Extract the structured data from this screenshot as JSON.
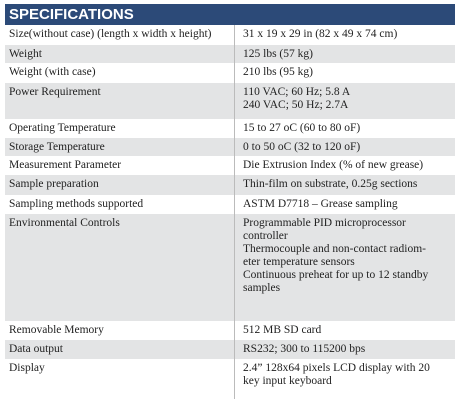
{
  "header": {
    "title": "SPECIFICATIONS"
  },
  "table": {
    "rows": [
      [
        "Size(without case) (length x width x height)",
        [
          "31 x 19 x 29 in (82 x 49 x 74 cm)"
        ]
      ],
      [
        "Weight",
        [
          "125 lbs (57 kg)"
        ]
      ],
      [
        "Weight (with case)",
        [
          "210 lbs (95 kg)"
        ]
      ],
      [
        "Power Requirement",
        [
          "110 VAC; 60 Hz; 5.8 A",
          "240 VAC; 50 Hz; 2.7A"
        ]
      ],
      [
        "Operating Temperature",
        [
          "15 to 27 oC (60 to 80 oF)"
        ]
      ],
      [
        "Storage Temperature",
        [
          "0 to 50 oC (32 to 120 oF)"
        ]
      ],
      [
        "Measurement Parameter",
        [
          "Die Extrusion Index (% of new grease)"
        ]
      ],
      [
        "Sample preparation",
        [
          "Thin-film on substrate, 0.25g sections"
        ]
      ],
      [
        "Sampling methods supported",
        [
          "ASTM D7718 – Grease sampling"
        ]
      ],
      [
        "Environmental Controls",
        [
          "Programmable PID microprocessor",
          "controller",
          "Thermocouple and non-contact radiom-",
          "eter temperature sensors",
          "Continuous preheat for up to 12 standby",
          "samples"
        ]
      ],
      [
        "Removable Memory",
        [
          "512 MB SD card"
        ]
      ],
      [
        "Data output",
        [
          "RS232; 300 to 115200 bps"
        ]
      ],
      [
        "Display",
        [
          "2.4” 128x64 pixels LCD display with 20",
          "key input keyboard"
        ]
      ]
    ]
  }
}
